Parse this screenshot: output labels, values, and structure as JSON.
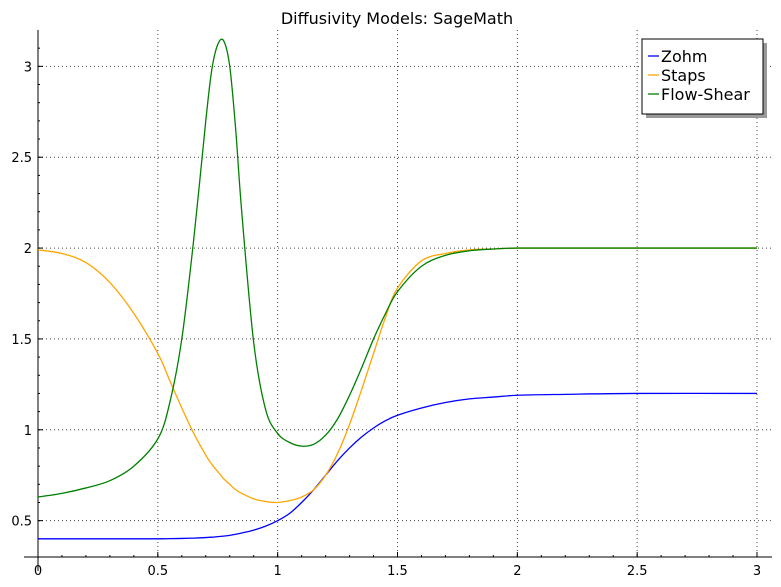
{
  "chart_data": {
    "type": "line",
    "title": "Diffusivity Models: SageMath",
    "xlabel": "",
    "ylabel": "",
    "xlim": [
      0,
      3
    ],
    "ylim": [
      0.3,
      3.2
    ],
    "x_ticks": [
      0,
      0.5,
      1,
      1.5,
      2,
      2.5,
      3
    ],
    "x_tick_labels": [
      "0",
      "0.5",
      "1",
      "1.5",
      "2",
      "2.5",
      "3"
    ],
    "y_ticks": [
      0.5,
      1,
      1.5,
      2,
      2.5,
      3
    ],
    "y_tick_labels": [
      "0.5",
      "1",
      "1.5",
      "2",
      "2.5",
      "3"
    ],
    "grid": true,
    "legend_position": "top-right",
    "x": [
      0,
      0.1,
      0.2,
      0.3,
      0.4,
      0.5,
      0.55,
      0.6,
      0.65,
      0.7,
      0.725,
      0.75,
      0.775,
      0.8,
      0.825,
      0.85,
      0.9,
      0.95,
      1.0,
      1.05,
      1.1,
      1.15,
      1.2,
      1.25,
      1.3,
      1.35,
      1.4,
      1.45,
      1.5,
      1.6,
      1.7,
      1.8,
      1.9,
      2.0,
      2.2,
      2.5,
      3.0
    ],
    "series": [
      {
        "name": "Zohm",
        "color": "#0000ff",
        "values": [
          0.4,
          0.4,
          0.4,
          0.4,
          0.4,
          0.4,
          0.401,
          0.402,
          0.404,
          0.407,
          0.409,
          0.412,
          0.415,
          0.419,
          0.425,
          0.432,
          0.448,
          0.47,
          0.5,
          0.54,
          0.6,
          0.67,
          0.75,
          0.83,
          0.9,
          0.96,
          1.01,
          1.05,
          1.08,
          1.12,
          1.15,
          1.17,
          1.18,
          1.19,
          1.195,
          1.2,
          1.2
        ]
      },
      {
        "name": "Staps",
        "color": "#ffa500",
        "values": [
          1.99,
          1.97,
          1.92,
          1.81,
          1.64,
          1.42,
          1.27,
          1.12,
          0.98,
          0.86,
          0.81,
          0.77,
          0.73,
          0.7,
          0.67,
          0.65,
          0.62,
          0.605,
          0.6,
          0.61,
          0.63,
          0.67,
          0.75,
          0.87,
          1.03,
          1.22,
          1.42,
          1.62,
          1.78,
          1.93,
          1.97,
          1.99,
          1.995,
          2.0,
          2.0,
          2.0,
          2.0
        ]
      },
      {
        "name": "Flow-Shear",
        "color": "#008000",
        "values": [
          0.63,
          0.65,
          0.68,
          0.72,
          0.8,
          0.95,
          1.15,
          1.5,
          2.05,
          2.7,
          2.98,
          3.12,
          3.14,
          3.0,
          2.65,
          2.2,
          1.48,
          1.11,
          0.98,
          0.93,
          0.91,
          0.92,
          0.97,
          1.06,
          1.19,
          1.34,
          1.5,
          1.64,
          1.76,
          1.9,
          1.96,
          1.985,
          1.995,
          2.0,
          2.0,
          2.0,
          2.0
        ]
      }
    ]
  }
}
